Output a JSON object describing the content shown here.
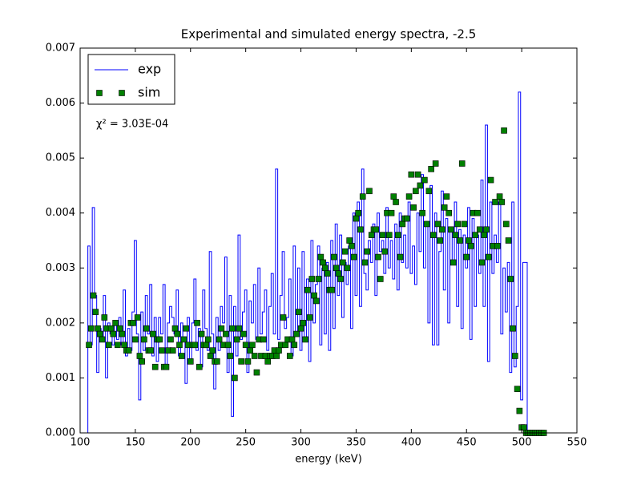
{
  "chart_data": {
    "type": "line",
    "title": "Experimental and simulated energy spectra, -2.5",
    "x_label": "energy (keV)",
    "annotation": "χ² = 3.03E-04",
    "legend": "upper left",
    "xlim": [
      100,
      550
    ],
    "xticks": [
      100,
      150,
      200,
      250,
      300,
      350,
      400,
      450,
      500,
      550
    ],
    "ylim": [
      0,
      0.007
    ],
    "yticks": [
      {
        "value": 0,
        "label": "0.000"
      },
      {
        "value": 0.001,
        "label": "0.001"
      },
      {
        "value": 0.002,
        "label": "0.002"
      },
      {
        "value": 0.003,
        "label": "0.003"
      },
      {
        "value": 0.004,
        "label": "0.004"
      },
      {
        "value": 0.005,
        "label": "0.005"
      },
      {
        "value": 0.006,
        "label": "0.006"
      },
      {
        "value": 0.007,
        "label": "0.007"
      }
    ],
    "x": [
      106,
      108,
      110,
      112,
      114,
      116,
      118,
      120,
      122,
      124,
      126,
      128,
      130,
      132,
      134,
      136,
      138,
      140,
      142,
      144,
      146,
      148,
      150,
      152,
      154,
      156,
      158,
      160,
      162,
      164,
      166,
      168,
      170,
      172,
      174,
      176,
      178,
      180,
      182,
      184,
      186,
      188,
      190,
      192,
      194,
      196,
      198,
      200,
      202,
      204,
      206,
      208,
      210,
      212,
      214,
      216,
      218,
      220,
      222,
      224,
      226,
      228,
      230,
      232,
      234,
      236,
      238,
      240,
      242,
      244,
      246,
      248,
      250,
      252,
      254,
      256,
      258,
      260,
      262,
      264,
      266,
      268,
      270,
      272,
      274,
      276,
      278,
      280,
      282,
      284,
      286,
      288,
      290,
      292,
      294,
      296,
      298,
      300,
      302,
      304,
      306,
      308,
      310,
      312,
      314,
      316,
      318,
      320,
      322,
      324,
      326,
      328,
      330,
      332,
      334,
      336,
      338,
      340,
      342,
      344,
      346,
      348,
      350,
      352,
      354,
      356,
      358,
      360,
      362,
      364,
      366,
      368,
      370,
      372,
      374,
      376,
      378,
      380,
      382,
      384,
      386,
      388,
      390,
      392,
      394,
      396,
      398,
      400,
      402,
      404,
      406,
      408,
      410,
      412,
      414,
      416,
      418,
      420,
      422,
      424,
      426,
      428,
      430,
      432,
      434,
      436,
      438,
      440,
      442,
      444,
      446,
      448,
      450,
      452,
      454,
      456,
      458,
      460,
      462,
      464,
      466,
      468,
      470,
      472,
      474,
      476,
      478,
      480,
      482,
      484,
      486,
      488,
      490,
      492,
      494,
      496,
      498,
      500,
      502,
      504,
      506,
      508,
      510,
      512,
      514,
      516,
      518,
      520
    ],
    "series": [
      {
        "name": "exp",
        "color": "#0000ff",
        "style": "steps-mid",
        "values": [
          0,
          0.0034,
          0.0016,
          0.0041,
          0.0025,
          0.0011,
          0.0019,
          0.0017,
          0.0025,
          0.001,
          0.002,
          0.0018,
          0.0016,
          0.002,
          0.0017,
          0.0021,
          0.0016,
          0.0026,
          0.0014,
          0.0019,
          0.0015,
          0.0022,
          0.0035,
          0.0018,
          0.0006,
          0.0022,
          0.0015,
          0.0025,
          0.0018,
          0.0027,
          0.0014,
          0.0021,
          0.0013,
          0.0021,
          0.0018,
          0.0027,
          0.0012,
          0.002,
          0.0023,
          0.0021,
          0.0018,
          0.0026,
          0.0014,
          0.002,
          0.0017,
          0.0009,
          0.0021,
          0.0013,
          0.002,
          0.0028,
          0.0015,
          0.0019,
          0.0012,
          0.0026,
          0.0019,
          0.0015,
          0.0033,
          0.0018,
          0.0008,
          0.0021,
          0.0015,
          0.0023,
          0.002,
          0.0032,
          0.0011,
          0.0025,
          0.0003,
          0.0023,
          0.0014,
          0.0036,
          0.0017,
          0.0022,
          0.0026,
          0.0011,
          0.0024,
          0.002,
          0.0027,
          0.0017,
          0.003,
          0.0018,
          0.0022,
          0.0026,
          0.0015,
          0.0023,
          0.0029,
          0.0018,
          0.0048,
          0.0017,
          0.0025,
          0.0033,
          0.0019,
          0.0021,
          0.0028,
          0.0014,
          0.0034,
          0.0018,
          0.003,
          0.0015,
          0.0033,
          0.0017,
          0.0028,
          0.0013,
          0.0035,
          0.002,
          0.0027,
          0.0034,
          0.0016,
          0.003,
          0.0018,
          0.0031,
          0.0015,
          0.0035,
          0.0019,
          0.0038,
          0.0025,
          0.0036,
          0.0021,
          0.0031,
          0.0027,
          0.0034,
          0.0019,
          0.004,
          0.0025,
          0.0042,
          0.0023,
          0.0048,
          0.0029,
          0.0026,
          0.0035,
          0.0031,
          0.0038,
          0.0025,
          0.004,
          0.0033,
          0.0035,
          0.0029,
          0.0041,
          0.003,
          0.0035,
          0.0028,
          0.0038,
          0.0026,
          0.004,
          0.0031,
          0.0036,
          0.003,
          0.0042,
          0.0029,
          0.0034,
          0.0027,
          0.004,
          0.0033,
          0.0047,
          0.003,
          0.0038,
          0.002,
          0.0045,
          0.0016,
          0.004,
          0.0016,
          0.0033,
          0.0044,
          0.0026,
          0.0039,
          0.002,
          0.0037,
          0.0031,
          0.0042,
          0.0023,
          0.0037,
          0.0019,
          0.0036,
          0.003,
          0.0041,
          0.0017,
          0.0039,
          0.0023,
          0.0036,
          0.0029,
          0.0046,
          0.0023,
          0.0056,
          0.0013,
          0.0042,
          0.0029,
          0.0036,
          0.0031,
          0.0042,
          0.0018,
          0.003,
          0.0022,
          0.0031,
          0.0011,
          0.0042,
          0.0012,
          0.0023,
          0.0062,
          0.0006,
          0.0031,
          0.0031,
          0,
          0,
          0,
          0,
          0,
          0,
          0,
          0
        ]
      },
      {
        "name": "sim",
        "color": "#008000",
        "style": "markers",
        "values": [
          null,
          0.0016,
          0.0019,
          0.0025,
          0.0022,
          0.0019,
          0.0018,
          0.0017,
          0.0021,
          0.0019,
          0.0016,
          0.0019,
          0.0018,
          0.002,
          0.0016,
          0.0019,
          0.0018,
          0.0016,
          0.0015,
          0.0015,
          0.002,
          0.002,
          0.0017,
          0.0021,
          0.0014,
          0.0013,
          0.0017,
          0.0019,
          0.0015,
          0.0015,
          0.0018,
          0.0012,
          0.0017,
          0.0017,
          0.0015,
          0.0012,
          0.0012,
          0.0015,
          0.0017,
          0.0015,
          0.0019,
          0.0018,
          0.0016,
          0.0014,
          0.0017,
          0.0019,
          0.0016,
          0.0013,
          0.0016,
          0.0016,
          0.002,
          0.0012,
          0.0018,
          0.0016,
          0.0016,
          0.0017,
          0.0014,
          0.0015,
          0.0013,
          0.0013,
          0.0017,
          0.0019,
          0.0016,
          0.0018,
          0.0016,
          0.0014,
          0.0019,
          0.001,
          0.0017,
          0.0019,
          0.0013,
          0.0018,
          0.0016,
          0.0013,
          0.0015,
          0.0016,
          0.0014,
          0.0011,
          0.0017,
          0.0014,
          0.0017,
          0.0014,
          0.0013,
          0.0014,
          0.0014,
          0.0015,
          0.0014,
          0.0015,
          0.0016,
          0.0021,
          0.0016,
          0.0017,
          0.0014,
          0.0017,
          0.0016,
          0.0018,
          0.0022,
          0.0019,
          0.002,
          0.0017,
          0.0026,
          0.0021,
          0.0028,
          0.0025,
          0.0024,
          0.0028,
          0.0032,
          0.0031,
          0.003,
          0.0029,
          0.0026,
          0.0026,
          0.0032,
          0.003,
          0.0029,
          0.0028,
          0.0031,
          0.0033,
          0.003,
          0.0035,
          0.0034,
          0.0032,
          0.0039,
          0.004,
          0.0037,
          0.0043,
          0.0031,
          0.0033,
          0.0044,
          0.0036,
          0.0037,
          0.0037,
          0.0032,
          0.0028,
          0.0036,
          0.0033,
          0.004,
          0.0036,
          0.004,
          0.0043,
          0.0042,
          0.0036,
          0.0032,
          0.0038,
          0.0039,
          0.0039,
          0.0043,
          0.0047,
          0.0041,
          0.0044,
          0.0047,
          0.0045,
          0.004,
          0.0046,
          0.0038,
          0.0044,
          0.0048,
          0.0036,
          0.0049,
          0.0038,
          0.0035,
          0.0037,
          0.0041,
          0.0043,
          0.004,
          0.0037,
          0.0031,
          0.0036,
          0.0038,
          0.0035,
          0.0049,
          0.0038,
          0.0032,
          0.0035,
          0.0034,
          0.004,
          0.0036,
          0.004,
          0.0037,
          0.0031,
          0.0036,
          0.0037,
          0.0032,
          0.0046,
          0.0034,
          0.0042,
          0.0034,
          0.0043,
          0.0042,
          0.0055,
          0.0038,
          0.0035,
          0.0028,
          0.0019,
          0.0014,
          0.0008,
          0.0004,
          0.0001,
          0.0001,
          0,
          0,
          0,
          0,
          0,
          0,
          0,
          0,
          0
        ]
      }
    ]
  }
}
